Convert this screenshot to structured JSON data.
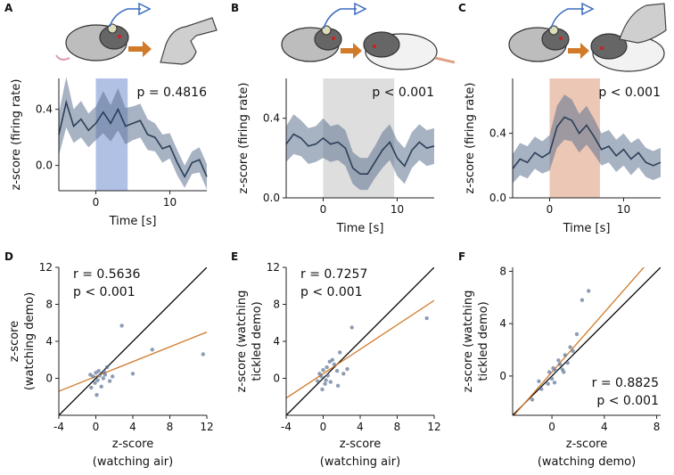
{
  "chart_data": [
    {
      "id": "A",
      "type": "line",
      "panel_label": "A",
      "illustration": "observer-rat-watching-hand",
      "x": [
        -5,
        -4,
        -3,
        -2,
        -1,
        0,
        1,
        2,
        3,
        4,
        5,
        6,
        7,
        8,
        9,
        10,
        11,
        12,
        13,
        14,
        15
      ],
      "series": [
        {
          "name": "mean",
          "values": [
            0.22,
            0.45,
            0.28,
            0.33,
            0.25,
            0.3,
            0.38,
            0.3,
            0.4,
            0.28,
            0.3,
            0.32,
            0.22,
            0.2,
            0.12,
            0.14,
            0.02,
            -0.08,
            0.02,
            0.04,
            -0.08
          ],
          "sem": [
            0.15,
            0.18,
            0.12,
            0.13,
            0.12,
            0.12,
            0.15,
            0.13,
            0.15,
            0.13,
            0.12,
            0.12,
            0.11,
            0.1,
            0.1,
            0.09,
            0.09,
            0.08,
            0.08,
            0.09,
            0.09
          ]
        }
      ],
      "highlight": {
        "from": 0,
        "to": 4.3,
        "color": "#7d97d6"
      },
      "stat_text": "p = 0.4816",
      "xlabel": "Time [s]",
      "ylabel": "z-score (firing rate)",
      "xlim": [
        -5,
        15
      ],
      "ylim": [
        -0.18,
        0.62
      ],
      "xticks": [
        0,
        10
      ],
      "yticks": [
        0.0,
        0.4
      ],
      "ytick_labels": [
        "0.0",
        "0.4"
      ]
    },
    {
      "id": "B",
      "type": "line",
      "panel_label": "B",
      "illustration": "observer-rat-watching-rat",
      "x": [
        -5,
        -4,
        -3,
        -2,
        -1,
        0,
        1,
        2,
        3,
        4,
        5,
        6,
        7,
        8,
        9,
        10,
        11,
        12,
        13,
        14,
        15
      ],
      "series": [
        {
          "name": "mean",
          "values": [
            0.27,
            0.32,
            0.3,
            0.26,
            0.27,
            0.3,
            0.27,
            0.28,
            0.25,
            0.15,
            0.12,
            0.12,
            0.18,
            0.24,
            0.28,
            0.2,
            0.16,
            0.24,
            0.28,
            0.25,
            0.26
          ],
          "sem": [
            0.09,
            0.1,
            0.09,
            0.09,
            0.09,
            0.1,
            0.09,
            0.09,
            0.09,
            0.08,
            0.08,
            0.08,
            0.08,
            0.09,
            0.09,
            0.09,
            0.09,
            0.09,
            0.09,
            0.09,
            0.09
          ]
        }
      ],
      "highlight": {
        "from": 0,
        "to": 9.6,
        "color": "#c8c8c8"
      },
      "stat_text": "p < 0.001",
      "xlabel": "Time [s]",
      "ylabel": "z-score (firing rate)",
      "xlim": [
        -5,
        15
      ],
      "ylim": [
        0.0,
        0.6
      ],
      "xticks": [
        0,
        10
      ],
      "yticks": [
        0.0,
        0.4
      ],
      "ytick_labels": [
        "0.0",
        "0.4"
      ]
    },
    {
      "id": "C",
      "type": "line",
      "panel_label": "C",
      "illustration": "observer-rat-watching-tickled-rat",
      "x": [
        -5,
        -4,
        -3,
        -2,
        -1,
        0,
        1,
        2,
        3,
        4,
        5,
        6,
        7,
        8,
        9,
        10,
        11,
        12,
        13,
        14,
        15
      ],
      "series": [
        {
          "name": "mean",
          "values": [
            0.18,
            0.24,
            0.22,
            0.28,
            0.25,
            0.28,
            0.44,
            0.5,
            0.48,
            0.4,
            0.45,
            0.38,
            0.3,
            0.32,
            0.26,
            0.3,
            0.24,
            0.28,
            0.22,
            0.2,
            0.22
          ],
          "sem": [
            0.09,
            0.1,
            0.1,
            0.1,
            0.1,
            0.11,
            0.13,
            0.14,
            0.13,
            0.12,
            0.12,
            0.11,
            0.1,
            0.1,
            0.1,
            0.1,
            0.1,
            0.09,
            0.09,
            0.09,
            0.09
          ]
        }
      ],
      "highlight": {
        "from": 0,
        "to": 6.8,
        "color": "#e0a184"
      },
      "stat_text": "p < 0.001",
      "xlabel": "Time [s]",
      "ylabel": "z-score (firing rate)",
      "xlim": [
        -5,
        15
      ],
      "ylim": [
        0.0,
        0.74
      ],
      "xticks": [
        0,
        10
      ],
      "yticks": [
        0.0,
        0.4
      ],
      "ytick_labels": [
        "0.0",
        "0.4"
      ]
    },
    {
      "id": "D",
      "type": "scatter",
      "panel_label": "D",
      "xlabel": "z-score\n(watching air)",
      "ylabel": "z-score\n(watching demo)",
      "xlim": [
        -4,
        12
      ],
      "ylim": [
        -4,
        12
      ],
      "xticks": [
        -4,
        0,
        4,
        8,
        12
      ],
      "yticks": [
        0,
        4,
        8,
        12
      ],
      "stat_lines": [
        "r = 0.5636",
        "p < 0.001"
      ],
      "identity_line": true,
      "fit": {
        "slope": 0.4,
        "intercept": 0.2,
        "color": "#d07a2a"
      },
      "points": [
        [
          11.6,
          2.6
        ],
        [
          6.1,
          3.1
        ],
        [
          2.8,
          5.7
        ],
        [
          4.0,
          0.5
        ],
        [
          0.3,
          0.8
        ],
        [
          1.2,
          1.2
        ],
        [
          0.1,
          -1.8
        ],
        [
          -0.5,
          -1.0
        ],
        [
          0.6,
          -0.9
        ],
        [
          1.0,
          0.4
        ],
        [
          -0.3,
          0.2
        ],
        [
          0.8,
          0.0
        ],
        [
          1.5,
          -0.3
        ],
        [
          -0.1,
          -0.5
        ],
        [
          0.4,
          0.3
        ],
        [
          0.0,
          0.6
        ],
        [
          0.2,
          -0.2
        ],
        [
          -0.6,
          0.4
        ],
        [
          0.9,
          0.7
        ],
        [
          1.8,
          0.2
        ]
      ]
    },
    {
      "id": "E",
      "type": "scatter",
      "panel_label": "E",
      "xlabel": "z-score\n(watching air)",
      "ylabel": "z-score (watching\ntickled demo)",
      "xlim": [
        -4,
        12
      ],
      "ylim": [
        -4,
        12
      ],
      "xticks": [
        -4,
        0,
        4,
        8,
        12
      ],
      "yticks": [
        0,
        4,
        8,
        12
      ],
      "stat_lines": [
        "r = 0.7257",
        "p < 0.001"
      ],
      "identity_line": true,
      "fit": {
        "slope": 0.66,
        "intercept": 0.5,
        "color": "#d07a2a"
      },
      "points": [
        [
          11.2,
          6.5
        ],
        [
          3.1,
          5.5
        ],
        [
          1.8,
          2.8
        ],
        [
          1.0,
          2.0
        ],
        [
          0.4,
          1.2
        ],
        [
          -0.4,
          0.5
        ],
        [
          0.2,
          -0.6
        ],
        [
          0.8,
          -0.4
        ],
        [
          1.5,
          0.8
        ],
        [
          -0.1,
          -1.2
        ],
        [
          0.5,
          0.3
        ],
        [
          1.2,
          1.5
        ],
        [
          -0.6,
          -0.3
        ],
        [
          0.0,
          0.9
        ],
        [
          2.2,
          0.5
        ],
        [
          0.7,
          1.8
        ],
        [
          -0.2,
          0.2
        ],
        [
          1.6,
          -0.8
        ],
        [
          2.6,
          1.0
        ],
        [
          0.3,
          -0.2
        ]
      ]
    },
    {
      "id": "F",
      "type": "scatter",
      "panel_label": "F",
      "xlabel": "z-score\n(watching demo)",
      "ylabel": "z-score (watching\ntickled demo)",
      "xlim": [
        -3,
        8.3
      ],
      "ylim": [
        -3,
        8.3
      ],
      "xticks": [
        0,
        4,
        8
      ],
      "yticks": [
        0,
        4,
        8
      ],
      "stat_lines": [
        "r = 0.8825",
        "p < 0.001"
      ],
      "identity_line": true,
      "fit": {
        "slope": 1.14,
        "intercept": 0.3,
        "color": "#d07a2a"
      },
      "points": [
        [
          2.8,
          6.5
        ],
        [
          2.3,
          5.8
        ],
        [
          1.9,
          3.2
        ],
        [
          1.4,
          2.2
        ],
        [
          1.0,
          1.6
        ],
        [
          0.6,
          0.9
        ],
        [
          0.3,
          0.4
        ],
        [
          0.0,
          -0.2
        ],
        [
          -0.3,
          -0.6
        ],
        [
          0.8,
          0.5
        ],
        [
          1.2,
          1.0
        ],
        [
          -0.8,
          -1.0
        ],
        [
          -1.5,
          -1.8
        ],
        [
          0.5,
          1.2
        ],
        [
          0.2,
          -0.5
        ],
        [
          1.6,
          1.9
        ],
        [
          -0.2,
          0.3
        ],
        [
          0.9,
          0.3
        ],
        [
          -1.0,
          -0.4
        ],
        [
          0.1,
          0.6
        ]
      ]
    }
  ],
  "colors": {
    "mean_line": "#2b3f58",
    "sem_band": "#5f7390",
    "points": "#5d7395",
    "identity": "#000000"
  }
}
